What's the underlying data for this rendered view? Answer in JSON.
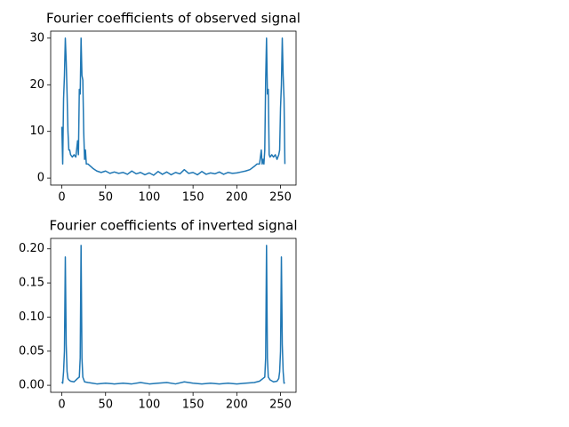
{
  "chart_data": [
    {
      "type": "line",
      "title": "Fourier coefficients of observed signal",
      "x": [
        0,
        1,
        2,
        3,
        4,
        5,
        6,
        7,
        8,
        9,
        10,
        12,
        14,
        16,
        18,
        19,
        20,
        21,
        22,
        23,
        24,
        25,
        26,
        27,
        28,
        30,
        33,
        36,
        40,
        45,
        50,
        55,
        60,
        65,
        70,
        75,
        80,
        85,
        90,
        95,
        100,
        105,
        110,
        115,
        120,
        125,
        130,
        135,
        140,
        145,
        150,
        155,
        160,
        165,
        170,
        175,
        180,
        185,
        190,
        195,
        200,
        205,
        210,
        215,
        220,
        223,
        226,
        228,
        229,
        230,
        231,
        232,
        233,
        234,
        235,
        236,
        237,
        238,
        240,
        242,
        244,
        246,
        248,
        249,
        250,
        251,
        252,
        253,
        254,
        255
      ],
      "series": [
        {
          "name": null,
          "color": "#1f77b4",
          "values": [
            11,
            3,
            17,
            22,
            30,
            25,
            18,
            10,
            6,
            6,
            5,
            4.5,
            5,
            4.5,
            8,
            5,
            19,
            18,
            30,
            22,
            21,
            10,
            4,
            6,
            3,
            3,
            2.5,
            2,
            1.5,
            1.2,
            1.5,
            1,
            1.3,
            1,
            1.2,
            0.8,
            1.5,
            0.9,
            1.2,
            0.7,
            1.1,
            0.6,
            1.4,
            0.8,
            1.3,
            0.7,
            1.2,
            0.9,
            1.8,
            1,
            1.2,
            0.7,
            1.4,
            0.8,
            1.1,
            0.9,
            1.3,
            0.8,
            1.2,
            1.0,
            1.1,
            1.3,
            1.5,
            1.8,
            2.5,
            3,
            3,
            6,
            3,
            4,
            3,
            6,
            21,
            30,
            18,
            19,
            5,
            4.5,
            5,
            4.5,
            5,
            4,
            5,
            6,
            15,
            20,
            30,
            22,
            17,
            3
          ]
        }
      ],
      "xlim": [
        -12.75,
        267.75
      ],
      "xticks": [
        0,
        50,
        100,
        150,
        200,
        250
      ],
      "ylim": [
        -1.5,
        31.5
      ],
      "yticks": [
        0,
        10,
        20,
        30
      ]
    },
    {
      "type": "line",
      "title": "Fourier coefficients of inverted signal",
      "x": [
        0,
        1,
        2,
        3,
        4,
        5,
        6,
        7,
        8,
        10,
        14,
        18,
        20,
        21,
        22,
        23,
        24,
        26,
        30,
        35,
        40,
        50,
        60,
        70,
        80,
        90,
        100,
        110,
        120,
        130,
        140,
        150,
        160,
        170,
        180,
        190,
        200,
        210,
        220,
        226,
        230,
        232,
        233,
        234,
        235,
        236,
        238,
        242,
        246,
        248,
        249,
        250,
        251,
        252,
        253,
        254,
        255
      ],
      "series": [
        {
          "name": null,
          "color": "#1f77b4",
          "values": [
            0.005,
            0.003,
            0.02,
            0.05,
            0.188,
            0.06,
            0.02,
            0.01,
            0.008,
            0.006,
            0.005,
            0.01,
            0.012,
            0.04,
            0.205,
            0.04,
            0.012,
            0.005,
            0.004,
            0.003,
            0.002,
            0.003,
            0.002,
            0.003,
            0.002,
            0.004,
            0.002,
            0.003,
            0.004,
            0.002,
            0.005,
            0.003,
            0.002,
            0.003,
            0.002,
            0.003,
            0.002,
            0.003,
            0.004,
            0.006,
            0.01,
            0.012,
            0.04,
            0.205,
            0.04,
            0.012,
            0.008,
            0.005,
            0.006,
            0.01,
            0.02,
            0.05,
            0.188,
            0.06,
            0.02,
            0.003,
            0.004
          ]
        }
      ],
      "xlim": [
        -12.75,
        267.75
      ],
      "xticks": [
        0,
        50,
        100,
        150,
        200,
        250
      ],
      "ylim": [
        -0.0103,
        0.2153
      ],
      "yticks": [
        {
          "value": 0,
          "label": "0.00"
        },
        {
          "value": 0.05,
          "label": "0.05"
        },
        {
          "value": 0.1,
          "label": "0.10"
        },
        {
          "value": 0.15,
          "label": "0.15"
        },
        {
          "value": 0.2,
          "label": "0.20"
        }
      ]
    }
  ]
}
